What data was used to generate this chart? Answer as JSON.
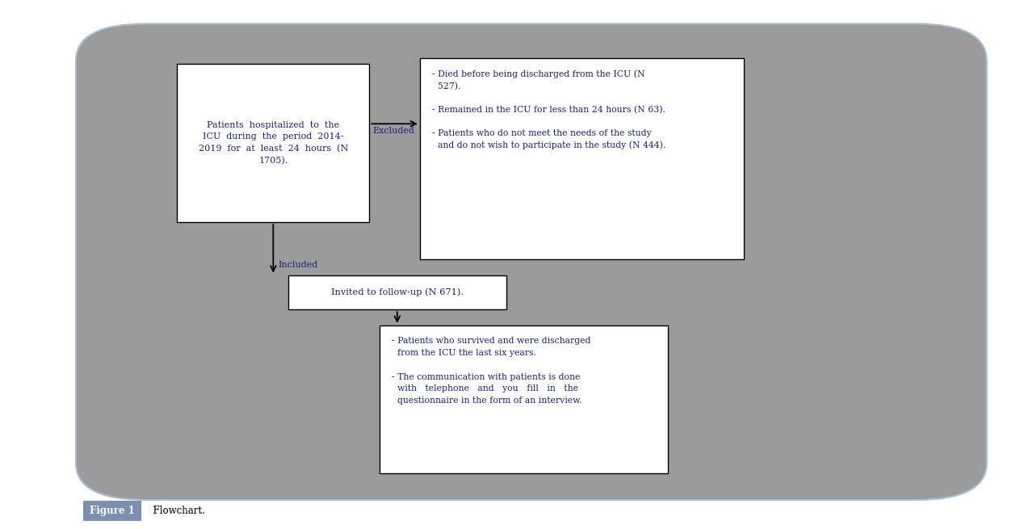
{
  "bg_outer": "#ffffff",
  "bg_inner": "#9b9b9b",
  "box_fill": "#ffffff",
  "box_edge": "#000000",
  "text_color_main": "#1a237e",
  "text_color_label": "#1a237e",
  "arrow_color": "#000000",
  "figure_label": "Figure 1",
  "figure_caption": "  Flowchart.",
  "box1_text": "Patients  hospitalized  to  the\nICU  during  the  period  2014-\n2019  for  at  least  24  hours  (N\n1705).",
  "box2_text": "- Died before being discharged from the ICU (N\n  527).\n\n- Remained in the ICU for less than 24 hours (N 63).\n\n- Patients who do not meet the needs of the study\n  and do not wish to participate in the study (N 444).",
  "box3_text": "Invited to follow-up (N 671).",
  "box4_text": "- Patients who survived and were discharged\n  from the ICU the last six years.\n\n- The communication with patients is done\n  with   telephone   and   you   fill   in   the\n  questionnaire in the form of an interview.",
  "excluded_label": "Excluded",
  "included_label": "Included",
  "outer_border_color": "#a8bdd4",
  "label_bg": "#7b8fae",
  "label_text": "#ffffff"
}
